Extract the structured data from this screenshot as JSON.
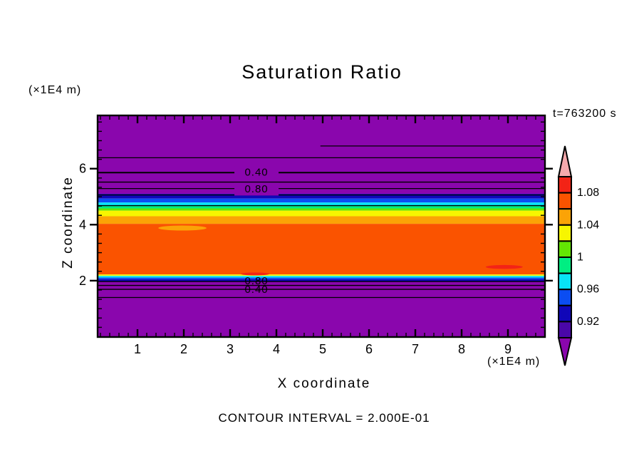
{
  "title": "Saturation Ratio",
  "time_label": "t=763200 s",
  "footer_label": "CONTOUR INTERVAL = 2.000E-01",
  "axes": {
    "x_label": "X coordinate",
    "x_unit": "(×1E4 m)",
    "y_label": "Z coordinate",
    "y_unit": "(×1E4 m)",
    "x_ticks": [
      "1",
      "2",
      "3",
      "4",
      "5",
      "6",
      "7",
      "8",
      "9"
    ],
    "y_ticks": [
      "2",
      "4",
      "6"
    ]
  },
  "chart_data": {
    "type": "heatmap",
    "subtype": "filled-contour",
    "title": "Saturation Ratio",
    "xlabel": "X coordinate (×1E4 m)",
    "ylabel": "Z coordinate (×1E4 m)",
    "time": "t=763200 s",
    "contour_interval": 0.2,
    "x_range": [
      0.14,
      9.8
    ],
    "y_range": [
      0,
      7.91
    ],
    "x_tick_values": [
      1,
      2,
      3,
      4,
      5,
      6,
      7,
      8,
      9
    ],
    "y_tick_values": [
      2,
      4,
      6
    ],
    "x_minor_step": 0.2,
    "y_minor_step": 0.3333,
    "background_value": "saturation ratio < 0.90",
    "bands": [
      {
        "z_from": 5.1,
        "z_to": 7.91,
        "color": "#8A06AD",
        "value": "<0.90"
      },
      {
        "z_from": 4.93,
        "z_to": 5.1,
        "color": "#1006B8",
        "value": "0.92-0.94"
      },
      {
        "z_from": 4.79,
        "z_to": 4.93,
        "color": "#0B4DF2",
        "value": "0.94-0.96"
      },
      {
        "z_from": 4.68,
        "z_to": 4.79,
        "color": "#08E4F5",
        "value": "0.96-0.98"
      },
      {
        "z_from": 4.58,
        "z_to": 4.68,
        "color": "#00EE82",
        "value": "0.98-1.00"
      },
      {
        "z_from": 4.5,
        "z_to": 4.58,
        "color": "#63E603",
        "value": "1.00-1.02"
      },
      {
        "z_from": 4.3,
        "z_to": 4.5,
        "color": "#F7F600",
        "value": "1.02-1.04"
      },
      {
        "z_from": 4.03,
        "z_to": 4.3,
        "color": "#FBA306",
        "value": "1.04-1.06"
      },
      {
        "z_from": 2.22,
        "z_to": 4.03,
        "color": "#FA5300",
        "value": "1.06-1.08"
      },
      {
        "z_from": 2.17,
        "z_to": 2.22,
        "color": "#F7F600",
        "value": "1.02-1.04"
      },
      {
        "z_from": 2.11,
        "z_to": 2.17,
        "color": "#08E4F5",
        "value": "0.96-0.98"
      },
      {
        "z_from": 2.05,
        "z_to": 2.11,
        "color": "#0B4DF2",
        "value": "0.94-0.96"
      },
      {
        "z_from": 1.97,
        "z_to": 2.05,
        "color": "#1006B8",
        "value": "0.92-0.94"
      },
      {
        "z_from": 0.0,
        "z_to": 1.97,
        "color": "#8A06AD",
        "value": "<0.90"
      }
    ],
    "lenses": [
      {
        "cx": 1.97,
        "cy": 3.88,
        "rx": 0.52,
        "ry": 0.09,
        "color": "#FBA306",
        "value": "1.04-1.06"
      },
      {
        "cx": 8.92,
        "cy": 2.49,
        "rx": 0.4,
        "ry": 0.07,
        "color": "#F32316",
        "value": "1.08-1.10"
      },
      {
        "cx": 3.54,
        "cy": 2.24,
        "rx": 0.31,
        "ry": 0.05,
        "color": "#F32316",
        "value": "1.08-1.10"
      }
    ],
    "contour_lines": [
      {
        "z": 6.81,
        "x_from": 4.95,
        "x_to": 9.8
      },
      {
        "z": 6.39
      },
      {
        "z": 5.86,
        "thick": true
      },
      {
        "z": 5.52
      },
      {
        "z": 5.29
      },
      {
        "z": 5.06
      },
      {
        "z": 4.68
      },
      {
        "z": 1.97
      },
      {
        "z": 1.83
      },
      {
        "z": 1.69
      },
      {
        "z": 1.4
      }
    ],
    "contour_labels": [
      {
        "text": "0.40",
        "x": 3.57,
        "z": 5.86,
        "gap": true
      },
      {
        "text": "0.80",
        "x": 3.57,
        "z": 5.27,
        "gap": true
      },
      {
        "text": "0.80",
        "x": 3.57,
        "z": 1.99,
        "gap": false
      },
      {
        "text": "0.40",
        "x": 3.57,
        "z": 1.68,
        "gap": false
      }
    ],
    "colorbar": {
      "labels": [
        "1.08",
        "1.04",
        "1",
        "0.96",
        "0.92"
      ],
      "label_values": [
        1.08,
        1.04,
        1.0,
        0.96,
        0.92
      ],
      "segment_colors_top_to_bottom": [
        "#F32316",
        "#FA5300",
        "#FBA306",
        "#F7F600",
        "#63E603",
        "#00EE82",
        "#08E4F5",
        "#0B4DF2",
        "#1006B8",
        "#4A07A8"
      ],
      "segment_step": 0.02,
      "above_arrow_color": "#F5A9AC",
      "below_arrow_color": "#8A06AD"
    }
  }
}
